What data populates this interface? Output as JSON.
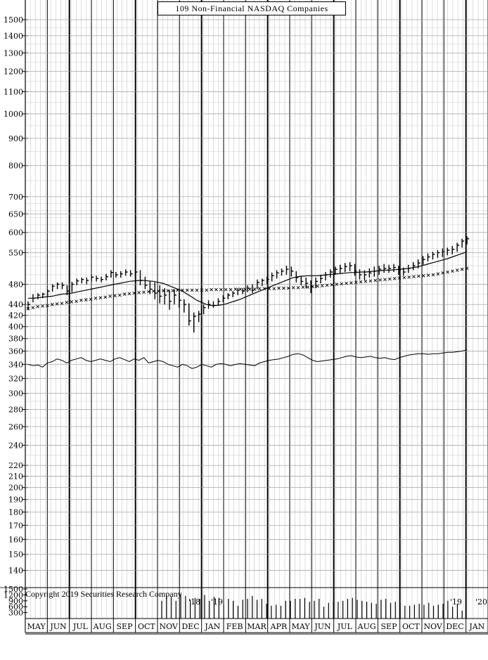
{
  "chart_data": {
    "type": "bar",
    "title": "109 Non-Financial NASDAQ Companies",
    "copyright": "Copyright 2019 Securities Research Company",
    "price_axis": {
      "scale": "log",
      "ylim": [
        130,
        1500
      ],
      "ticks": [
        140,
        150,
        160,
        170,
        180,
        190,
        200,
        210,
        220,
        240,
        260,
        280,
        300,
        320,
        340,
        360,
        380,
        400,
        420,
        440,
        480,
        550,
        600,
        650,
        700,
        800,
        900,
        1000,
        1100,
        1200,
        1300,
        1400,
        1500
      ]
    },
    "volume_axis": {
      "ylim": [
        0,
        1500
      ],
      "ticks": [
        300,
        600,
        900,
        1200,
        1500
      ]
    },
    "months": [
      "MAY",
      "JUN",
      "JUL",
      "AUG",
      "SEP",
      "OCT",
      "NOV",
      "DEC",
      "JAN",
      "FEB",
      "MAR",
      "APR",
      "MAY",
      "JUN",
      "JUL",
      "AUG",
      "SEP",
      "OCT",
      "NOV",
      "DEC",
      "JAN"
    ],
    "year_labels": [
      "'18",
      "'19",
      "'19",
      "'20"
    ],
    "weekly_bars": [
      {
        "high": 446,
        "low": 430,
        "close": 440
      },
      {
        "high": 460,
        "low": 444,
        "close": 452
      },
      {
        "high": 462,
        "low": 450,
        "close": 458
      },
      {
        "high": 463,
        "low": 452,
        "close": 460
      },
      {
        "high": 470,
        "low": 456,
        "close": 466
      },
      {
        "high": 480,
        "low": 465,
        "close": 476
      },
      {
        "high": 484,
        "low": 470,
        "close": 480
      },
      {
        "high": 484,
        "low": 470,
        "close": 478
      },
      {
        "high": 478,
        "low": 458,
        "close": 466
      },
      {
        "high": 485,
        "low": 464,
        "close": 480
      },
      {
        "high": 492,
        "low": 478,
        "close": 487
      },
      {
        "high": 494,
        "low": 482,
        "close": 490
      },
      {
        "high": 494,
        "low": 480,
        "close": 488
      },
      {
        "high": 500,
        "low": 486,
        "close": 495
      },
      {
        "high": 498,
        "low": 486,
        "close": 492
      },
      {
        "high": 496,
        "low": 484,
        "close": 490
      },
      {
        "high": 502,
        "low": 488,
        "close": 496
      },
      {
        "high": 510,
        "low": 494,
        "close": 505
      },
      {
        "high": 506,
        "low": 494,
        "close": 500
      },
      {
        "high": 508,
        "low": 494,
        "close": 502
      },
      {
        "high": 512,
        "low": 498,
        "close": 506
      },
      {
        "high": 510,
        "low": 496,
        "close": 502
      },
      {
        "high": 514,
        "low": 496,
        "close": 506
      },
      {
        "high": 510,
        "low": 478,
        "close": 488
      },
      {
        "high": 496,
        "low": 470,
        "close": 478
      },
      {
        "high": 486,
        "low": 460,
        "close": 470
      },
      {
        "high": 484,
        "low": 450,
        "close": 462
      },
      {
        "high": 478,
        "low": 442,
        "close": 456
      },
      {
        "high": 472,
        "low": 440,
        "close": 458
      },
      {
        "high": 468,
        "low": 430,
        "close": 446
      },
      {
        "high": 470,
        "low": 440,
        "close": 458
      },
      {
        "high": 464,
        "low": 434,
        "close": 448
      },
      {
        "high": 450,
        "low": 425,
        "close": 440
      },
      {
        "high": 442,
        "low": 402,
        "close": 410
      },
      {
        "high": 425,
        "low": 390,
        "close": 418
      },
      {
        "high": 428,
        "low": 408,
        "close": 422
      },
      {
        "high": 440,
        "low": 422,
        "close": 434
      },
      {
        "high": 448,
        "low": 432,
        "close": 440
      },
      {
        "high": 446,
        "low": 434,
        "close": 438
      },
      {
        "high": 452,
        "low": 438,
        "close": 446
      },
      {
        "high": 458,
        "low": 444,
        "close": 452
      },
      {
        "high": 462,
        "low": 450,
        "close": 458
      },
      {
        "high": 466,
        "low": 454,
        "close": 462
      },
      {
        "high": 472,
        "low": 458,
        "close": 468
      },
      {
        "high": 472,
        "low": 460,
        "close": 466
      },
      {
        "high": 478,
        "low": 464,
        "close": 472
      },
      {
        "high": 480,
        "low": 462,
        "close": 468
      },
      {
        "high": 490,
        "low": 470,
        "close": 484
      },
      {
        "high": 492,
        "low": 476,
        "close": 488
      },
      {
        "high": 496,
        "low": 480,
        "close": 490
      },
      {
        "high": 505,
        "low": 486,
        "close": 498
      },
      {
        "high": 510,
        "low": 492,
        "close": 504
      },
      {
        "high": 514,
        "low": 498,
        "close": 508
      },
      {
        "high": 520,
        "low": 500,
        "close": 512
      },
      {
        "high": 518,
        "low": 496,
        "close": 508
      },
      {
        "high": 508,
        "low": 484,
        "close": 494
      },
      {
        "high": 498,
        "low": 478,
        "close": 486
      },
      {
        "high": 494,
        "low": 472,
        "close": 482
      },
      {
        "high": 488,
        "low": 462,
        "close": 476
      },
      {
        "high": 494,
        "low": 472,
        "close": 486
      },
      {
        "high": 500,
        "low": 482,
        "close": 492
      },
      {
        "high": 506,
        "low": 488,
        "close": 500
      },
      {
        "high": 512,
        "low": 494,
        "close": 506
      },
      {
        "high": 518,
        "low": 500,
        "close": 512
      },
      {
        "high": 522,
        "low": 504,
        "close": 514
      },
      {
        "high": 526,
        "low": 506,
        "close": 518
      },
      {
        "high": 528,
        "low": 508,
        "close": 520
      },
      {
        "high": 524,
        "low": 498,
        "close": 508
      },
      {
        "high": 512,
        "low": 490,
        "close": 500
      },
      {
        "high": 510,
        "low": 488,
        "close": 500
      },
      {
        "high": 514,
        "low": 494,
        "close": 504
      },
      {
        "high": 518,
        "low": 496,
        "close": 508
      },
      {
        "high": 520,
        "low": 500,
        "close": 512
      },
      {
        "high": 524,
        "low": 504,
        "close": 514
      },
      {
        "high": 522,
        "low": 504,
        "close": 514
      },
      {
        "high": 524,
        "low": 506,
        "close": 516
      },
      {
        "high": 520,
        "low": 500,
        "close": 510
      },
      {
        "high": 516,
        "low": 498,
        "close": 506
      },
      {
        "high": 522,
        "low": 504,
        "close": 514
      },
      {
        "high": 528,
        "low": 510,
        "close": 520
      },
      {
        "high": 534,
        "low": 514,
        "close": 526
      },
      {
        "high": 542,
        "low": 522,
        "close": 534
      },
      {
        "high": 548,
        "low": 530,
        "close": 540
      },
      {
        "high": 552,
        "low": 534,
        "close": 546
      },
      {
        "high": 556,
        "low": 538,
        "close": 550
      },
      {
        "high": 560,
        "low": 540,
        "close": 552
      },
      {
        "high": 562,
        "low": 544,
        "close": 556
      },
      {
        "high": 566,
        "low": 546,
        "close": 558
      },
      {
        "high": 574,
        "low": 552,
        "close": 568
      },
      {
        "high": 584,
        "low": 562,
        "close": 578
      },
      {
        "high": 590,
        "low": 570,
        "close": 584
      }
    ],
    "moving_average_line": [
      452,
      452,
      453,
      454,
      455,
      456,
      458,
      460,
      461,
      462,
      464,
      466,
      468,
      470,
      472,
      474,
      476,
      478,
      480,
      482,
      484,
      486,
      487,
      488,
      488,
      487,
      486,
      484,
      482,
      478,
      474,
      470,
      466,
      460,
      454,
      448,
      444,
      440,
      438,
      438,
      439,
      441,
      444,
      447,
      450,
      454,
      458,
      462,
      466,
      470,
      474,
      478,
      482,
      486,
      490,
      494,
      496,
      497,
      498,
      498,
      498,
      499,
      500,
      501,
      502,
      503,
      504,
      505,
      505,
      506,
      506,
      507,
      508,
      509,
      510,
      510,
      511,
      512,
      513,
      514,
      516,
      518,
      521,
      524,
      527,
      530,
      533,
      536,
      540,
      544,
      548,
      552
    ],
    "long_average_line": [
      432,
      434,
      436,
      437,
      438,
      440,
      441,
      442,
      444,
      445,
      446,
      448,
      449,
      450,
      452,
      453,
      454,
      456,
      457,
      458,
      460,
      461,
      462,
      463,
      464,
      465,
      466,
      466,
      467,
      467,
      467,
      468,
      468,
      468,
      468,
      468,
      468,
      468,
      469,
      469,
      469,
      469,
      469,
      470,
      470,
      470,
      470,
      470,
      471,
      471,
      471,
      471,
      472,
      472,
      472,
      473,
      473,
      474,
      474,
      475,
      476,
      477,
      478,
      479,
      480,
      481,
      482,
      483,
      484,
      485,
      486,
      487,
      488,
      489,
      490,
      491,
      492,
      493,
      494,
      495,
      496,
      497,
      498,
      499,
      500,
      502,
      504,
      506,
      508,
      510,
      512,
      514
    ],
    "relative_strength_line": [
      340,
      338,
      339,
      336,
      342,
      344,
      348,
      346,
      342,
      346,
      348,
      350,
      346,
      344,
      346,
      348,
      346,
      344,
      348,
      350,
      347,
      344,
      348,
      346,
      350,
      342,
      344,
      346,
      344,
      340,
      338,
      336,
      340,
      338,
      334,
      336,
      340,
      338,
      336,
      340,
      341,
      340,
      338,
      340,
      341,
      340,
      339,
      338,
      342,
      344,
      346,
      347,
      348,
      350,
      352,
      355,
      356,
      354,
      350,
      346,
      344,
      345,
      346,
      347,
      348,
      350,
      352,
      353,
      351,
      350,
      351,
      352,
      350,
      349,
      350,
      348,
      347,
      350,
      352,
      354,
      355,
      356,
      356,
      355,
      356,
      356,
      357,
      358,
      358,
      359,
      360,
      362
    ],
    "weekly_volume": [
      0,
      0,
      0,
      0,
      0,
      0,
      0,
      0,
      0,
      0,
      0,
      0,
      0,
      0,
      0,
      0,
      0,
      0,
      0,
      0,
      0,
      0,
      0,
      0,
      0,
      0,
      0,
      0,
      900,
      1150,
      1100,
      900,
      1250,
      1150,
      950,
      1050,
      1000,
      1200,
      900,
      1100,
      1050,
      700,
      1000,
      900,
      650,
      950,
      1000,
      1150,
      950,
      1000,
      750,
      650,
      700,
      650,
      900,
      900,
      1000,
      1000,
      1050,
      850,
      900,
      1000,
      600,
      800,
      850,
      850,
      900,
      1000,
      1050,
      950,
      900,
      850,
      800,
      750,
      950,
      1000,
      800,
      850,
      800,
      650,
      650,
      700,
      750,
      700,
      800,
      650,
      700,
      750,
      900,
      600,
      750,
      400,
      0
    ]
  }
}
